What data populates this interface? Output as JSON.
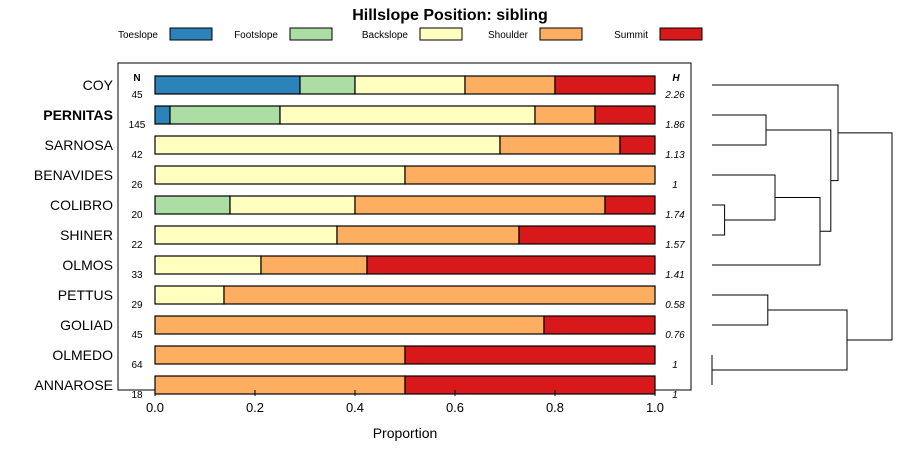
{
  "chart_data": {
    "type": "bar",
    "orientation": "horizontal-stacked",
    "title": "Hillslope Position: sibling",
    "xlabel": "Proportion",
    "xlim": [
      0,
      1
    ],
    "xticks": [
      "0.0",
      "0.2",
      "0.4",
      "0.6",
      "0.8",
      "1.0"
    ],
    "xtick_values": [
      0,
      0.2,
      0.4,
      0.6,
      0.8,
      1.0
    ],
    "n_header": "N",
    "h_header": "H",
    "legend": [
      {
        "name": "Toeslope",
        "color": "#2b83ba"
      },
      {
        "name": "Footslope",
        "color": "#abdda4"
      },
      {
        "name": "Backslope",
        "color": "#ffffbf"
      },
      {
        "name": "Shoulder",
        "color": "#fdae61"
      },
      {
        "name": "Summit",
        "color": "#d7191c"
      }
    ],
    "rows": [
      {
        "name": "COY",
        "bold": false,
        "n": "45",
        "h": "2.26",
        "values": [
          0.29,
          0.11,
          0.22,
          0.18,
          0.2
        ]
      },
      {
        "name": "PERNITAS",
        "bold": true,
        "n": "145",
        "h": "1.86",
        "values": [
          0.03,
          0.22,
          0.51,
          0.12,
          0.12
        ]
      },
      {
        "name": "SARNOSA",
        "bold": false,
        "n": "42",
        "h": "1.13",
        "values": [
          0,
          0,
          0.69,
          0.24,
          0.07
        ]
      },
      {
        "name": "BENAVIDES",
        "bold": false,
        "n": "26",
        "h": "1",
        "values": [
          0,
          0,
          0.5,
          0.5,
          0
        ]
      },
      {
        "name": "COLIBRO",
        "bold": false,
        "n": "20",
        "h": "1.74",
        "values": [
          0,
          0.15,
          0.25,
          0.5,
          0.1
        ]
      },
      {
        "name": "SHINER",
        "bold": false,
        "n": "22",
        "h": "1.57",
        "values": [
          0,
          0,
          0.364,
          0.364,
          0.272
        ]
      },
      {
        "name": "OLMOS",
        "bold": false,
        "n": "33",
        "h": "1.41",
        "values": [
          0,
          0,
          0.212,
          0.212,
          0.576
        ]
      },
      {
        "name": "PETTUS",
        "bold": false,
        "n": "29",
        "h": "0.58",
        "values": [
          0,
          0,
          0.138,
          0.862,
          0
        ]
      },
      {
        "name": "GOLIAD",
        "bold": false,
        "n": "45",
        "h": "0.76",
        "values": [
          0,
          0,
          0,
          0.778,
          0.222
        ]
      },
      {
        "name": "OLMEDO",
        "bold": false,
        "n": "64",
        "h": "1",
        "values": [
          0,
          0,
          0,
          0.5,
          0.5
        ]
      },
      {
        "name": "ANNAROSE",
        "bold": false,
        "n": "18",
        "h": "1",
        "values": [
          0,
          0,
          0,
          0.5,
          0.5
        ]
      }
    ],
    "dendrogram": {
      "description": "hierarchical clustering of soil series by hillslope position proportions",
      "leaves_top_to_bottom": [
        "COY",
        "PERNITAS",
        "SARNOSA",
        "BENAVIDES",
        "COLIBRO",
        "SHINER",
        "OLMOS",
        "PETTUS",
        "GOLIAD",
        "OLMEDO",
        "ANNAROSE"
      ],
      "merges": [
        {
          "a": "OLMEDO",
          "b": "ANNAROSE",
          "height": 0.0
        },
        {
          "a": "COLIBRO",
          "b": "SHINER",
          "height": 0.07
        },
        {
          "a": "PERNITAS",
          "b": "SARNOSA",
          "height": 0.3
        },
        {
          "a": "PETTUS",
          "b": "GOLIAD",
          "height": 0.31
        },
        {
          "a": "BENAVIDES",
          "b": "COLIBRO+SHINER",
          "height": 0.35
        },
        {
          "a": "BENAVIDES+COLIBRO+SHINER",
          "b": "OLMOS",
          "height": 0.6
        },
        {
          "a": "PERNITAS+SARNOSA",
          "b": "BENAVIDES+COLIBRO+SHINER+OLMOS",
          "height": 0.66
        },
        {
          "a": "COY",
          "b": "PERNITAS+SARNOSA+BENAVIDES+COLIBRO+SHINER+OLMOS",
          "height": 0.7
        },
        {
          "a": "PETTUS+GOLIAD",
          "b": "OLMEDO+ANNAROSE",
          "height": 0.75
        },
        {
          "a": "COY+PERNITAS+SARNOSA+BENAVIDES+COLIBRO+SHINER+OLMOS",
          "b": "PETTUS+GOLIAD+OLMEDO+ANNAROSE",
          "height": 1.0
        }
      ]
    }
  }
}
